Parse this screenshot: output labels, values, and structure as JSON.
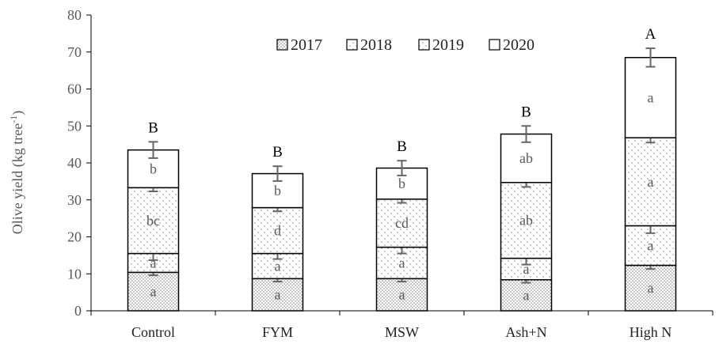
{
  "chart_data": {
    "type": "bar",
    "stacked": true,
    "ylabel": "Olive yield (kg tree",
    "ylabel_superscript": "-1",
    "ylabel_close": ")",
    "ylim": [
      0,
      80
    ],
    "yticks": [
      0,
      10,
      20,
      30,
      40,
      50,
      60,
      70,
      80
    ],
    "categories": [
      "Control",
      "FYM",
      "MSW",
      "Ash+N",
      "High N"
    ],
    "series": [
      {
        "name": "2017",
        "pattern": "dense-dots",
        "values": [
          10.4,
          8.7,
          8.7,
          8.4,
          12.3
        ],
        "errors": [
          0.8,
          0.8,
          0.8,
          0.8,
          1.0
        ],
        "labels": [
          "a",
          "a",
          "a",
          "a",
          "a"
        ]
      },
      {
        "name": "2018",
        "pattern": "sparse-dots",
        "values": [
          5.1,
          6.8,
          8.5,
          5.8,
          10.7
        ],
        "errors": [
          1.8,
          1.5,
          1.7,
          1.7,
          2.0
        ],
        "labels": [
          "a",
          "a",
          "a",
          "a",
          "a"
        ]
      },
      {
        "name": "2019",
        "pattern": "sparse-dots",
        "values": [
          17.8,
          12.4,
          13.0,
          20.5,
          23.8
        ],
        "errors": [
          1.0,
          1.0,
          1.0,
          1.2,
          1.3
        ],
        "labels": [
          "bc",
          "d",
          "cd",
          "ab",
          "a"
        ]
      },
      {
        "name": "2020",
        "pattern": "none",
        "values": [
          10.2,
          9.2,
          8.4,
          13.1,
          21.7
        ],
        "errors": [
          2.2,
          2.0,
          2.0,
          2.2,
          2.5
        ],
        "labels": [
          "b",
          "b",
          "b",
          "ab",
          "a"
        ]
      }
    ],
    "total_labels": [
      "B",
      "B",
      "B",
      "B",
      "A"
    ],
    "legend": {
      "position": "top-center",
      "entries": [
        "2017",
        "2018",
        "2019",
        "2020"
      ]
    },
    "colors": {
      "bar_outline": "#000000",
      "dots": "#7f7f7f",
      "axis": "#000000",
      "error_bar": "#666666"
    }
  }
}
